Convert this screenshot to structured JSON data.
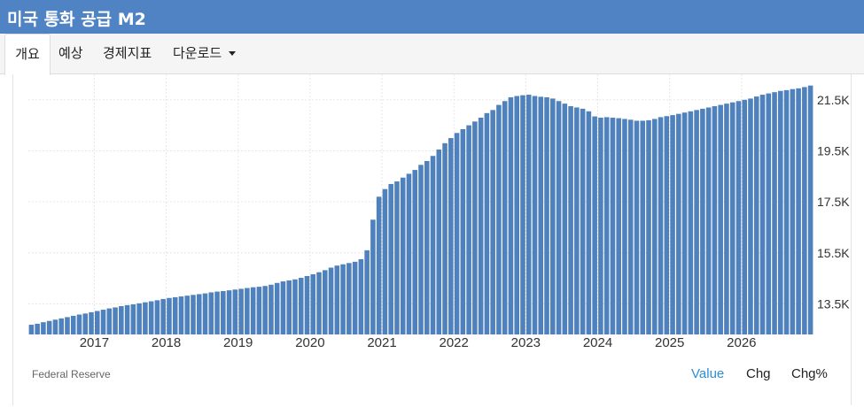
{
  "header": {
    "title": "미국 통화 공급 M2"
  },
  "tabs": [
    {
      "label": "개요",
      "active": true
    },
    {
      "label": "예상"
    },
    {
      "label": "경제지표"
    },
    {
      "label": "다운로드"
    }
  ],
  "footer": {
    "source": "Federal Reserve",
    "buttons": [
      {
        "label": "Value",
        "active": true
      },
      {
        "label": "Chg"
      },
      {
        "label": "Chg%"
      }
    ]
  },
  "colors": {
    "header": "#5083c3",
    "bar": "#4f81bd",
    "active_button": "#2a8fd6"
  },
  "chart_data": {
    "type": "bar",
    "title": "",
    "xlabel": "",
    "ylabel": "",
    "ylim": [
      12300,
      22500
    ],
    "y_ticks": [
      "13.5K",
      "15.5K",
      "17.5K",
      "19.5K",
      "21.5K"
    ],
    "y_tick_values": [
      13500,
      15500,
      17500,
      19500,
      21500
    ],
    "x_ticks": [
      "2017",
      "2018",
      "2019",
      "2020",
      "2021",
      "2022",
      "2023",
      "2024",
      "2025",
      "2026"
    ],
    "grid": true,
    "y_axis_side": "right",
    "start": "2016-02",
    "frequency": "monthly",
    "values": [
      12680,
      12720,
      12780,
      12830,
      12880,
      12930,
      12980,
      13030,
      13080,
      13120,
      13170,
      13220,
      13270,
      13320,
      13360,
      13410,
      13450,
      13480,
      13520,
      13560,
      13600,
      13640,
      13690,
      13730,
      13760,
      13790,
      13820,
      13850,
      13880,
      13910,
      13950,
      13980,
      14000,
      14030,
      14060,
      14090,
      14120,
      14150,
      14170,
      14200,
      14250,
      14320,
      14380,
      14420,
      14460,
      14520,
      14590,
      14660,
      14740,
      14820,
      14920,
      15000,
      15050,
      15100,
      15150,
      15250,
      15600,
      16800,
      17700,
      18000,
      18200,
      18300,
      18450,
      18600,
      18750,
      18950,
      19100,
      19300,
      19550,
      19800,
      20000,
      20200,
      20350,
      20500,
      20650,
      20800,
      20980,
      21100,
      21300,
      21450,
      21600,
      21650,
      21680,
      21700,
      21650,
      21620,
      21600,
      21550,
      21450,
      21350,
      21250,
      21200,
      21150,
      21050,
      20850,
      20800,
      20820,
      20800,
      20780,
      20750,
      20720,
      20680,
      20680,
      20700,
      20750,
      20820,
      20860,
      20900,
      20950,
      21000,
      21050,
      21100,
      21150,
      21200,
      21250,
      21300,
      21350,
      21400,
      21450,
      21500,
      21550,
      21630,
      21700,
      21750,
      21800,
      21850,
      21880,
      21920,
      21950,
      22000,
      22060
    ]
  }
}
